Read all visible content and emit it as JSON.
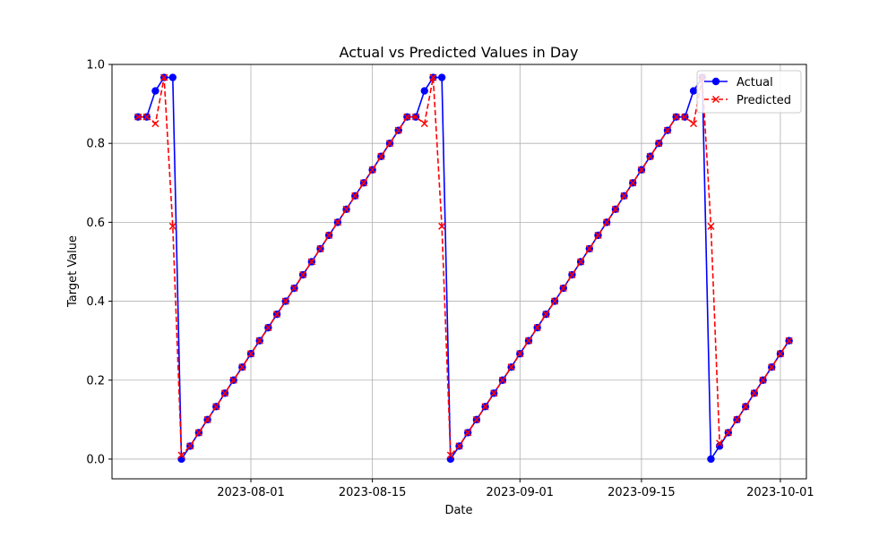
{
  "chart_data": {
    "type": "line",
    "title": "Actual vs Predicted Values in Day",
    "xlabel": "Date",
    "ylabel": "Target Value",
    "x_start": "2023-07-19",
    "x_step_days": 1,
    "xlim": [
      "2023-07-16",
      "2023-10-04"
    ],
    "ylim": [
      -0.05,
      1.0
    ],
    "grid": true,
    "legend_position": "top-right",
    "x_ticks": [
      "2023-08-01",
      "2023-08-15",
      "2023-09-01",
      "2023-09-15",
      "2023-10-01"
    ],
    "y_ticks": [
      "0.0",
      "0.2",
      "0.4",
      "0.6",
      "0.8",
      "1.0"
    ],
    "y_tick_values": [
      0.0,
      0.2,
      0.4,
      0.6,
      0.8,
      1.0
    ],
    "series": [
      {
        "name": "Actual",
        "color": "#0000ff",
        "style": "solid",
        "marker": "circle",
        "values": [
          0.867,
          0.867,
          0.933,
          0.967,
          0.967,
          0.0,
          0.033,
          0.067,
          0.1,
          0.133,
          0.167,
          0.2,
          0.233,
          0.267,
          0.3,
          0.333,
          0.367,
          0.4,
          0.433,
          0.467,
          0.5,
          0.533,
          0.567,
          0.6,
          0.633,
          0.667,
          0.7,
          0.733,
          0.767,
          0.8,
          0.833,
          0.867,
          0.867,
          0.933,
          0.967,
          0.967,
          0.0,
          0.033,
          0.067,
          0.1,
          0.133,
          0.167,
          0.2,
          0.233,
          0.267,
          0.3,
          0.333,
          0.367,
          0.4,
          0.433,
          0.467,
          0.5,
          0.533,
          0.567,
          0.6,
          0.633,
          0.667,
          0.7,
          0.733,
          0.767,
          0.8,
          0.833,
          0.867,
          0.867,
          0.933,
          0.967,
          0.0,
          0.033,
          0.067,
          0.1,
          0.133,
          0.167,
          0.2,
          0.233,
          0.267,
          0.3
        ]
      },
      {
        "name": "Predicted",
        "color": "#ff0000",
        "style": "dashed",
        "marker": "x",
        "values": [
          0.867,
          0.867,
          0.85,
          0.967,
          0.59,
          0.01,
          0.033,
          0.067,
          0.1,
          0.133,
          0.167,
          0.2,
          0.233,
          0.267,
          0.3,
          0.333,
          0.367,
          0.4,
          0.433,
          0.467,
          0.5,
          0.533,
          0.567,
          0.6,
          0.633,
          0.667,
          0.7,
          0.733,
          0.767,
          0.8,
          0.833,
          0.867,
          0.867,
          0.85,
          0.967,
          0.59,
          0.01,
          0.033,
          0.067,
          0.1,
          0.133,
          0.167,
          0.2,
          0.233,
          0.267,
          0.3,
          0.333,
          0.367,
          0.4,
          0.433,
          0.467,
          0.5,
          0.533,
          0.567,
          0.6,
          0.633,
          0.667,
          0.7,
          0.733,
          0.767,
          0.8,
          0.833,
          0.867,
          0.867,
          0.85,
          0.967,
          0.59,
          0.04,
          0.067,
          0.1,
          0.133,
          0.167,
          0.2,
          0.233,
          0.267,
          0.3
        ]
      }
    ]
  }
}
